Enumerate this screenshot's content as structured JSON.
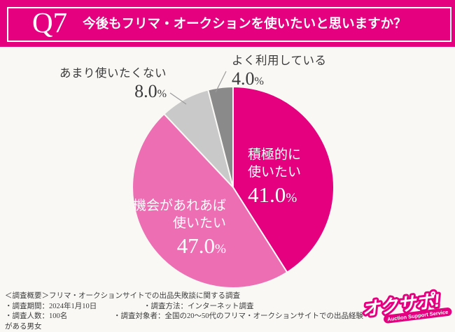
{
  "header": {
    "q_label": "Q7",
    "title": "今後もフリマ・オークションを使いたいと思いますか？",
    "bg_color": "#E4007F"
  },
  "chart_data": {
    "type": "pie",
    "title": "今後もフリマ・オークションを使いたいと思いますか？",
    "direction": "clockwise",
    "start_angle_deg": 0,
    "percent_symbol": "%",
    "slices": [
      {
        "label": "積極的に使いたい",
        "label_lines": [
          "積極的に",
          "使いたい"
        ],
        "value": 41.0,
        "display": "41.0",
        "color": "#E4007F",
        "label_position": "inside"
      },
      {
        "label": "機会があれあば使いたい",
        "label_lines": [
          "機会があれあば",
          "使いたい"
        ],
        "value": 47.0,
        "display": "47.0",
        "color": "#EE6EB4",
        "label_position": "inside"
      },
      {
        "label": "あまり使いたくない",
        "value": 8.0,
        "display": "8.0",
        "color": "#C9C9C9",
        "label_position": "outside"
      },
      {
        "label": "よく利用している",
        "value": 4.0,
        "display": "4.0",
        "color": "#8A8A8A",
        "label_position": "outside"
      }
    ]
  },
  "footer": {
    "line1": "＜調査概要＞フリマ・オークションサイトでの出品失敗談に関する調査",
    "line2a": "・調査期間：2024年1月10日",
    "line2b": "・調査方法：インターネット調査",
    "line3a": "・調査人数：100名",
    "line3b": "・調査対象者：全国の20～50代のフリマ・オークションサイトでの出品経験がある男女"
  },
  "logo": {
    "text": "オクサポ!",
    "subtext": "Auction Support Service",
    "color": "#E4007F"
  }
}
